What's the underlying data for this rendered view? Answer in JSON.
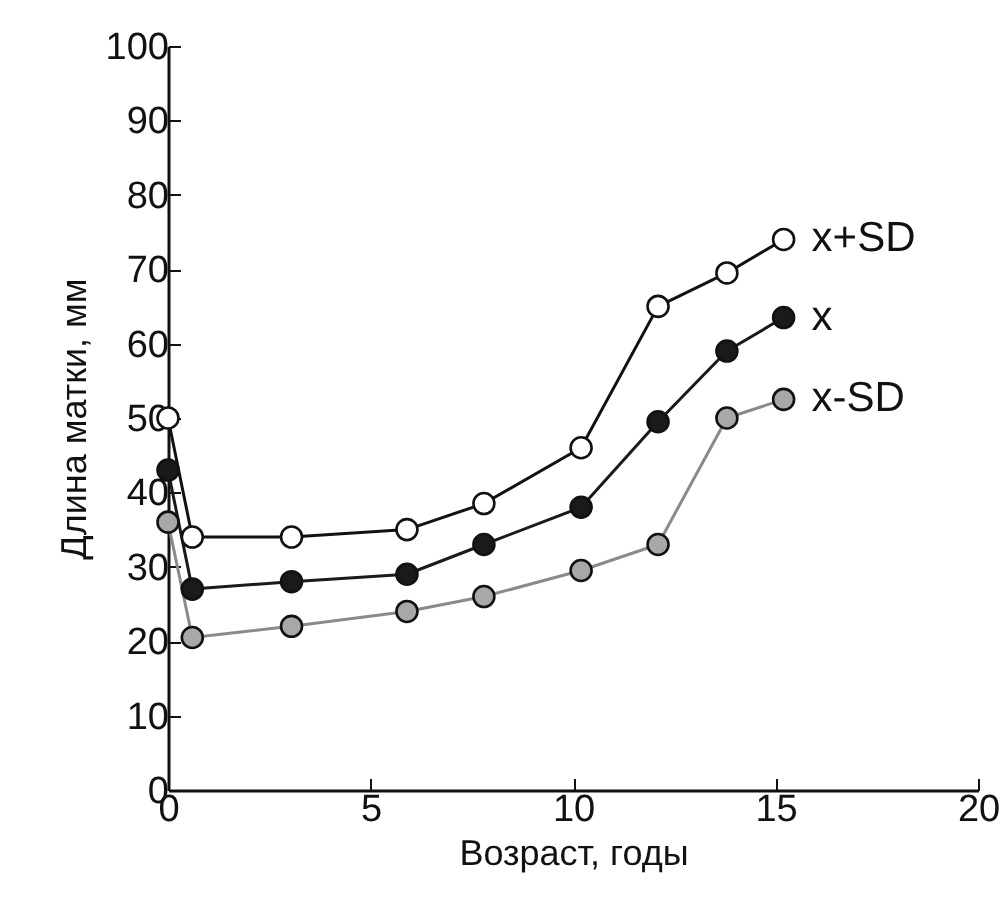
{
  "chart_data": {
    "type": "line",
    "xlabel": "Возраст, годы",
    "ylabel": "Длина матки, мм",
    "x": [
      0,
      0.6,
      3.05,
      5.9,
      7.8,
      10.2,
      12.1,
      13.8,
      15.2
    ],
    "series": [
      {
        "name": "x+SD",
        "color": "#ffffff",
        "values": [
          50,
          34,
          34,
          35,
          38.5,
          46,
          65,
          69.5,
          74
        ]
      },
      {
        "name": "x",
        "color": "#1a1a1a",
        "values": [
          43,
          27,
          28,
          29,
          33,
          38,
          49.5,
          59,
          63.5
        ]
      },
      {
        "name": "x-SD",
        "color": "#a8a8a8",
        "values": [
          36,
          20.5,
          22,
          24,
          26,
          29.5,
          33,
          50,
          52.5
        ]
      }
    ],
    "xlim": [
      0,
      20
    ],
    "xticks": [
      0,
      5,
      10,
      15,
      20
    ],
    "ylim": [
      0,
      100
    ],
    "yticks": [
      0,
      10,
      20,
      30,
      40,
      50,
      60,
      70,
      80,
      90,
      100
    ],
    "marker": "circle",
    "line_style": "solid",
    "grid": false,
    "legend": false
  }
}
